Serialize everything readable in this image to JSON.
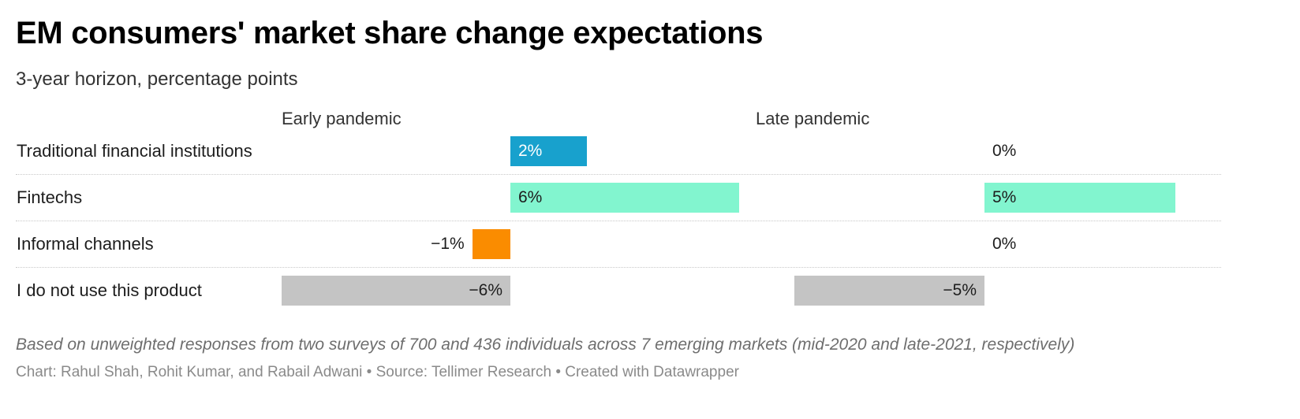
{
  "header": {
    "title": "EM consumers' market share change expectations",
    "subtitle": "3-year horizon, percentage points"
  },
  "footer": {
    "notes": "Based on unweighted responses from two surveys of 700 and 436 individuals across 7 emerging markets (mid-2020 and late-2021, respectively)",
    "credit": "Chart: Rahul Shah, Rohit Kumar, and Rabail Adwani • Source: Tellimer Research • Created with Datawrapper"
  },
  "chart_data": {
    "type": "bar",
    "orientation": "horizontal",
    "title": "EM consumers' market share change expectations",
    "subtitle": "3-year horizon, percentage points",
    "unit": "percentage points",
    "categories": [
      "Traditional financial institutions",
      "Fintechs",
      "Informal channels",
      "I do not use this product"
    ],
    "panels": [
      {
        "name": "Early pandemic",
        "values": [
          2,
          6,
          -1,
          -6
        ],
        "labels": [
          "2%",
          "6%",
          "−1%",
          "−6%"
        ]
      },
      {
        "name": "Late pandemic",
        "values": [
          0,
          5,
          0,
          -5
        ],
        "labels": [
          "0%",
          "5%",
          "0%",
          "−5%"
        ]
      }
    ],
    "colors": [
      "#18a1cd",
      "#82f5cf",
      "#fa8c00",
      "#c4c4c4"
    ],
    "grid": false,
    "legend": "none"
  }
}
